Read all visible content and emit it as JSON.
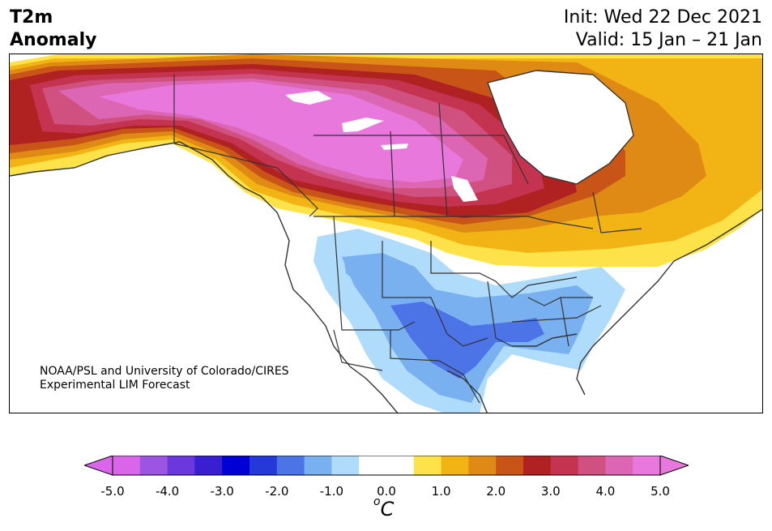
{
  "title": {
    "left_line1": "T2m",
    "left_line2": "Anomaly",
    "right_line1": "Init: Wed 22 Dec 2021",
    "right_line2": "Valid: 15 Jan – 21 Jan"
  },
  "credit": {
    "line1": "NOAA/PSL and University of Colorado/CIRES",
    "line2": "Experimental LIM Forecast"
  },
  "colorbar": {
    "ticks": [
      "-5.0",
      "-4.0",
      "-3.0",
      "-2.0",
      "-1.0",
      "0.0",
      "1.0",
      "2.0",
      "3.0",
      "4.0",
      "5.0"
    ],
    "unit_base": "C",
    "unit_sup": "o",
    "extend": "both",
    "colors": [
      "#d966e8",
      "#9b55e0",
      "#6a38dd",
      "#3a1fd0",
      "#0000d4",
      "#2538d8",
      "#4c74e6",
      "#78b0f0",
      "#b0dcfc",
      "#ffffff",
      "#ffffff",
      "#fde24a",
      "#f2b414",
      "#de8a14",
      "#c85418",
      "#b02222",
      "#c43450",
      "#d05080",
      "#dc66b4",
      "#e878dc"
    ],
    "min_color": "#d966e8",
    "max_color": "#e878dc"
  }
}
